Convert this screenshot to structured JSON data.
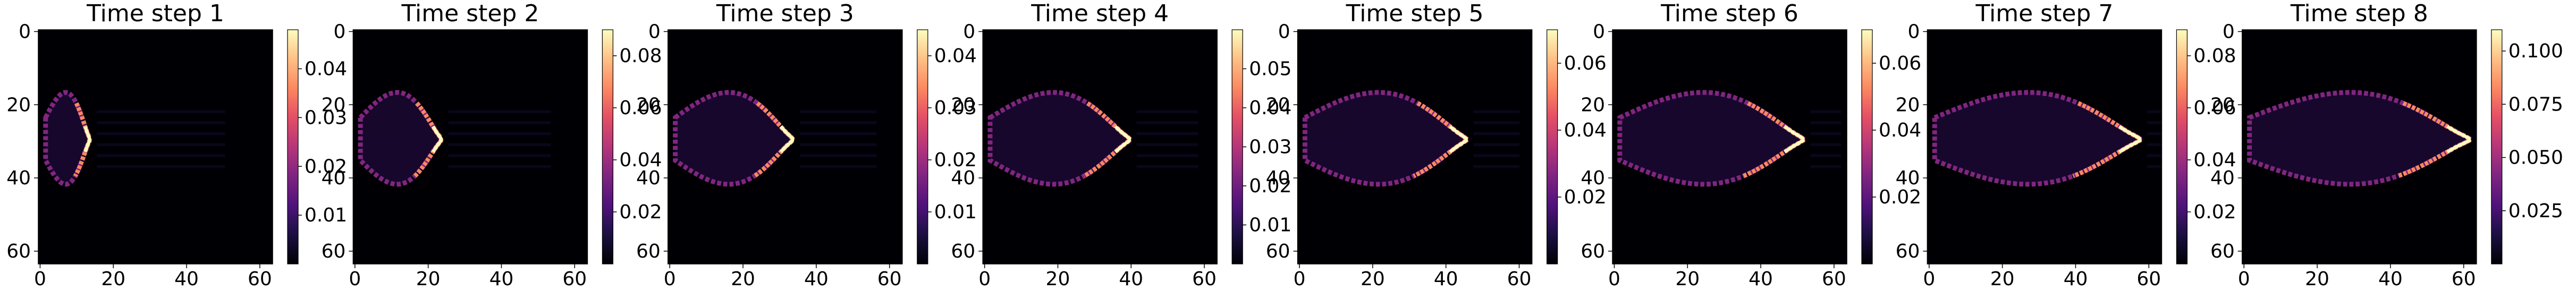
{
  "chart_data": {
    "type": "heatmap",
    "colormap": "magma",
    "grid": false,
    "panels": [
      {
        "title": "Time step 1",
        "xticks": [
          "0",
          "20",
          "40",
          "60"
        ],
        "yticks": [
          "0",
          "20",
          "40",
          "60"
        ],
        "colorbar": {
          "range": [
            0,
            0.048
          ],
          "ticks": [
            "0.01",
            "0.02",
            "0.03",
            "0.04"
          ]
        }
      },
      {
        "title": "Time step 2",
        "xticks": [
          "0",
          "20",
          "40",
          "60"
        ],
        "yticks": [
          "0",
          "20",
          "40",
          "60"
        ],
        "colorbar": {
          "range": [
            0,
            0.09
          ],
          "ticks": [
            "0.02",
            "0.04",
            "0.06",
            "0.08"
          ]
        }
      },
      {
        "title": "Time step 3",
        "xticks": [
          "0",
          "20",
          "40",
          "60"
        ],
        "yticks": [
          "0",
          "20",
          "40",
          "60"
        ],
        "colorbar": {
          "range": [
            0,
            0.045
          ],
          "ticks": [
            "0.01",
            "0.02",
            "0.03",
            "0.04"
          ]
        }
      },
      {
        "title": "Time step 4",
        "xticks": [
          "0",
          "20",
          "40",
          "60"
        ],
        "yticks": [
          "0",
          "20",
          "40",
          "60"
        ],
        "colorbar": {
          "range": [
            0,
            0.06
          ],
          "ticks": [
            "0.01",
            "0.02",
            "0.03",
            "0.04",
            "0.05"
          ]
        }
      },
      {
        "title": "Time step 5",
        "xticks": [
          "0",
          "20",
          "40",
          "60"
        ],
        "yticks": [
          "0",
          "20",
          "40",
          "60"
        ],
        "colorbar": {
          "range": [
            0,
            0.07
          ],
          "ticks": [
            "0.02",
            "0.04",
            "0.06"
          ]
        }
      },
      {
        "title": "Time step 6",
        "xticks": [
          "0",
          "20",
          "40",
          "60"
        ],
        "yticks": [
          "0",
          "20",
          "40",
          "60"
        ],
        "colorbar": {
          "range": [
            0,
            0.07
          ],
          "ticks": [
            "0.02",
            "0.04",
            "0.06"
          ]
        }
      },
      {
        "title": "Time step 7",
        "xticks": [
          "0",
          "20",
          "40",
          "60"
        ],
        "yticks": [
          "0",
          "20",
          "40",
          "60"
        ],
        "colorbar": {
          "range": [
            0,
            0.09
          ],
          "ticks": [
            "0.02",
            "0.04",
            "0.06",
            "0.08"
          ]
        }
      },
      {
        "title": "Time step 8",
        "xticks": [
          "0",
          "20",
          "40",
          "60"
        ],
        "yticks": [
          "0",
          "20",
          "40",
          "60"
        ],
        "colorbar": {
          "range": [
            0,
            0.11
          ],
          "ticks": [
            "0.025",
            "0.050",
            "0.075",
            "0.100"
          ]
        }
      }
    ]
  }
}
